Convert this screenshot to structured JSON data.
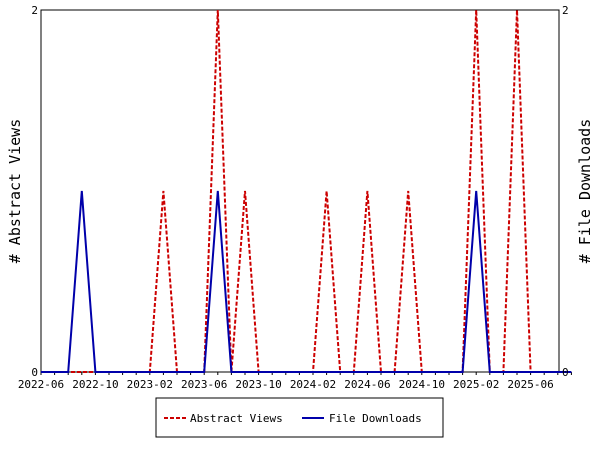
{
  "chart_data": {
    "type": "line",
    "x": [
      "2022-06",
      "2022-07",
      "2022-08",
      "2022-09",
      "2022-10",
      "2022-11",
      "2022-12",
      "2023-01",
      "2023-02",
      "2023-03",
      "2023-04",
      "2023-05",
      "2023-06",
      "2023-07",
      "2023-08",
      "2023-09",
      "2023-10",
      "2023-11",
      "2023-12",
      "2024-01",
      "2024-02",
      "2024-03",
      "2024-04",
      "2024-05",
      "2024-06",
      "2024-07",
      "2024-08",
      "2024-09",
      "2024-10",
      "2024-11",
      "2024-12",
      "2025-01",
      "2025-02",
      "2025-03",
      "2025-04",
      "2025-05",
      "2025-06",
      "2025-07",
      "2025-08",
      "2025-09"
    ],
    "xticks": [
      "2022-06",
      "2022-10",
      "2023-02",
      "2023-06",
      "2023-10",
      "2024-02",
      "2024-06",
      "2024-10",
      "2025-02",
      "2025-06"
    ],
    "series": [
      {
        "name": "Abstract Views",
        "axis": "left",
        "color": "#cc0000",
        "dash": true,
        "values": [
          0,
          0,
          0,
          0,
          0,
          0,
          0,
          0,
          0,
          1,
          0,
          0,
          0,
          2,
          0,
          1,
          0,
          0,
          0,
          0,
          0,
          1,
          0,
          0,
          1,
          0,
          0,
          1,
          0,
          0,
          0,
          0,
          2,
          0,
          0,
          2,
          0,
          0,
          0,
          0
        ]
      },
      {
        "name": "File Downloads",
        "axis": "right",
        "color": "#0000aa",
        "dash": false,
        "values": [
          0,
          0,
          0,
          1,
          0,
          0,
          0,
          0,
          0,
          0,
          0,
          0,
          0,
          1,
          0,
          0,
          0,
          0,
          0,
          0,
          0,
          0,
          0,
          0,
          0,
          0,
          0,
          0,
          0,
          0,
          0,
          0,
          1,
          0,
          0,
          0,
          0,
          0,
          0,
          0
        ]
      }
    ],
    "ylabel": "# Abstract Views",
    "y2label": "# File Downloads",
    "ylim": [
      0,
      2
    ],
    "y2lim": [
      0,
      2
    ],
    "yticks": [
      0,
      2
    ],
    "y2ticks": [
      0,
      2
    ],
    "legend": "bottom"
  }
}
